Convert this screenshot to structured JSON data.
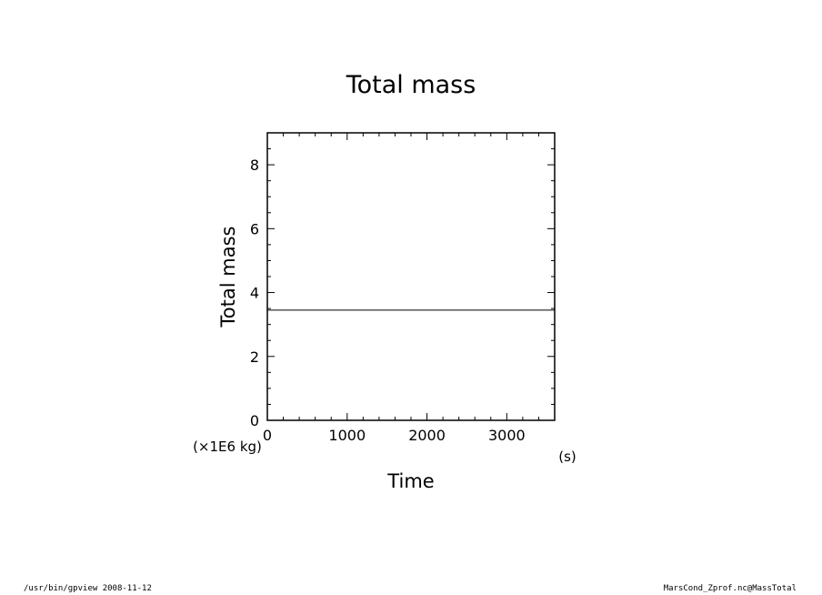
{
  "chart_data": {
    "type": "line",
    "title": "Total mass",
    "xlabel": "Time",
    "xunit": "(s)",
    "ylabel": "Total mass",
    "yunit": "(×1E6 kg)",
    "xlim": [
      0,
      3600
    ],
    "ylim": [
      0,
      9
    ],
    "x_major_ticks": [
      0,
      1000,
      2000,
      3000
    ],
    "y_major_ticks": [
      0,
      2,
      4,
      6,
      8
    ],
    "x_tick_labels": [
      "0",
      "1000",
      "2000",
      "3000"
    ],
    "y_tick_labels": [
      "0",
      "2",
      "4",
      "6",
      "8"
    ],
    "grid": false,
    "series": [
      {
        "x": [
          0,
          3600
        ],
        "values": [
          3.45,
          3.45
        ],
        "color": "#000000"
      }
    ]
  },
  "footer": {
    "left": "/usr/bin/gpview   2008-11-12",
    "right": "MarsCond_Zprof.nc@MassTotal"
  }
}
